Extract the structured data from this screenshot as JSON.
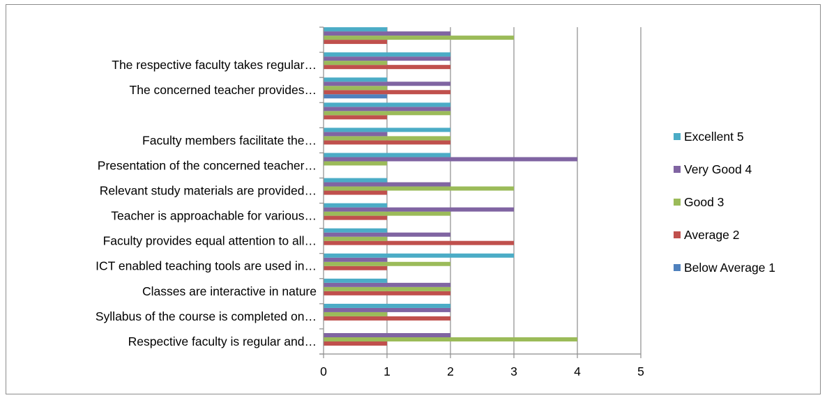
{
  "chart_data": {
    "type": "bar",
    "orientation": "horizontal",
    "categories": [
      "Respective faculty is regular and…",
      "Syllabus of the course is completed on…",
      "Classes are interactive in nature",
      "ICT enabled teaching tools are used in…",
      "Faculty provides equal attention to all…",
      "Teacher is approachable for various…",
      "Relevant study materials are provided…",
      "Presentation of the concerned teacher…",
      "Faculty members facilitate the…",
      "",
      "The concerned teacher provides…",
      "The respective faculty takes regular…",
      ""
    ],
    "series": [
      {
        "name": "Below Average 1",
        "color": "#4f81bd",
        "values": [
          0,
          0,
          0,
          0,
          0,
          0,
          0,
          0,
          0,
          0,
          1,
          0,
          0
        ]
      },
      {
        "name": "Average 2",
        "color": "#c0504d",
        "values": [
          1,
          2,
          2,
          1,
          3,
          1,
          1,
          0,
          2,
          1,
          2,
          2,
          1
        ]
      },
      {
        "name": "Good 3",
        "color": "#9bbb59",
        "values": [
          4,
          1,
          2,
          2,
          1,
          2,
          3,
          1,
          2,
          2,
          1,
          1,
          3
        ]
      },
      {
        "name": "Very Good 4",
        "color": "#8064a2",
        "values": [
          2,
          2,
          2,
          1,
          2,
          3,
          2,
          4,
          1,
          2,
          2,
          2,
          2
        ]
      },
      {
        "name": "Excellent 5",
        "color": "#4bacc6",
        "values": [
          0,
          2,
          1,
          3,
          1,
          1,
          1,
          2,
          2,
          2,
          1,
          2,
          1
        ]
      }
    ],
    "xticks": [
      "0",
      "1",
      "2",
      "3",
      "4",
      "5"
    ],
    "xlim": [
      0,
      5
    ],
    "title": "",
    "xlabel": "",
    "ylabel": "",
    "grid": "vertical",
    "legend_position": "right"
  }
}
